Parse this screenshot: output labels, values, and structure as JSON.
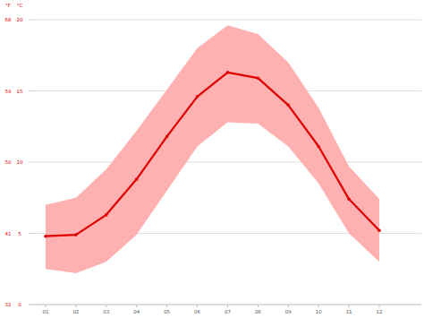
{
  "chart_data": {
    "type": "line",
    "categories": [
      "01",
      "02",
      "03",
      "04",
      "05",
      "06",
      "07",
      "08",
      "09",
      "10",
      "11",
      "12"
    ],
    "values": [
      4.8,
      4.9,
      6.3,
      8.8,
      11.8,
      14.6,
      16.3,
      15.9,
      14.0,
      11.1,
      7.4,
      5.2
    ],
    "low": [
      2.5,
      2.2,
      3.0,
      4.9,
      8.0,
      11.1,
      12.8,
      12.7,
      11.1,
      8.5,
      5.0,
      3.0
    ],
    "high": [
      7.0,
      7.5,
      9.5,
      12.2,
      15.1,
      18.0,
      19.6,
      19.0,
      17.0,
      13.8,
      9.7,
      7.4
    ],
    "color": "#e00000",
    "marker": "circle",
    "y_label": "°C",
    "y2_label": "°F",
    "ylim": [
      0,
      20
    ],
    "yticks": [
      0,
      5,
      10,
      15,
      20
    ],
    "y2lim": [
      32,
      68
    ],
    "y2ticks": [
      32,
      41,
      50,
      59,
      68
    ],
    "grid": true
  }
}
